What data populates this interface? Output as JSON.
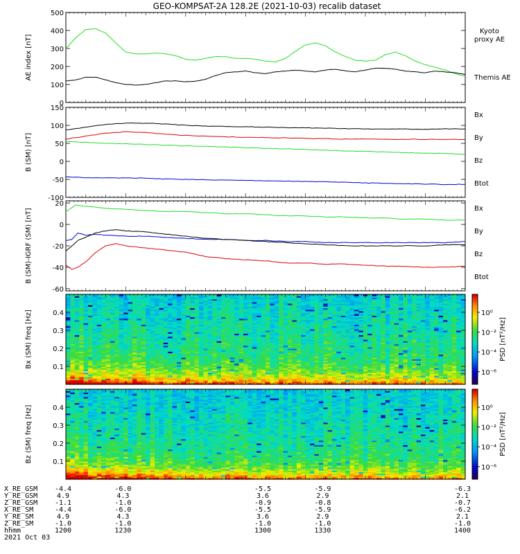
{
  "title": "GEO-KOMPSAT-2A 128.2E (2021-10-03) recalib dataset",
  "colors": {
    "black": "#000000",
    "green": "#22dd22",
    "red": "#dd0000",
    "blue": "#0000cc"
  },
  "chart_data": [
    {
      "type": "line",
      "id": "ae",
      "ylabel": "AE index [nT]",
      "ylim": [
        0,
        500
      ],
      "yticks": [
        0,
        100,
        200,
        300,
        400,
        500
      ],
      "xlim": [
        1200,
        1400
      ],
      "series": [
        {
          "name": "Kyoto proxy AE",
          "color": "green",
          "x": [
            1200,
            1205,
            1210,
            1215,
            1220,
            1225,
            1230,
            1235,
            1240,
            1245,
            1250,
            1255,
            1260,
            1265,
            1270,
            1275,
            1280,
            1285,
            1290,
            1295,
            1300,
            1305,
            1310,
            1315,
            1320,
            1325,
            1330,
            1335,
            1340,
            1345,
            1350,
            1355,
            1360,
            1365,
            1370,
            1375,
            1380,
            1385,
            1390,
            1395,
            1400
          ],
          "y": [
            300,
            360,
            405,
            410,
            385,
            330,
            280,
            270,
            270,
            275,
            270,
            260,
            240,
            235,
            245,
            255,
            255,
            245,
            245,
            240,
            230,
            225,
            245,
            285,
            320,
            330,
            315,
            280,
            255,
            235,
            230,
            235,
            265,
            280,
            260,
            230,
            210,
            195,
            180,
            160,
            145
          ]
        },
        {
          "name": "Themis AE",
          "color": "black",
          "x": [
            1200,
            1205,
            1210,
            1215,
            1220,
            1225,
            1230,
            1235,
            1240,
            1245,
            1250,
            1255,
            1260,
            1265,
            1270,
            1275,
            1280,
            1285,
            1290,
            1295,
            1300,
            1305,
            1310,
            1315,
            1320,
            1325,
            1330,
            1335,
            1340,
            1345,
            1350,
            1355,
            1360,
            1365,
            1370,
            1375,
            1380,
            1385,
            1390,
            1395,
            1400
          ],
          "y": [
            120,
            125,
            140,
            140,
            125,
            110,
            100,
            97,
            100,
            110,
            120,
            120,
            115,
            118,
            130,
            150,
            165,
            170,
            175,
            165,
            160,
            170,
            175,
            180,
            175,
            170,
            180,
            185,
            175,
            170,
            180,
            190,
            190,
            185,
            175,
            170,
            165,
            175,
            170,
            165,
            155
          ]
        }
      ]
    },
    {
      "type": "line",
      "id": "bsm",
      "ylabel": "B (SM) [nT]",
      "ylim": [
        -100,
        150
      ],
      "yticks": [
        -100,
        -50,
        0,
        50,
        100,
        150
      ],
      "xlim": [
        1200,
        1400
      ],
      "series": [
        {
          "name": "Bx",
          "color": "blue",
          "x": [
            1200,
            1210,
            1220,
            1230,
            1240,
            1250,
            1260,
            1270,
            1280,
            1290,
            1300,
            1310,
            1320,
            1330,
            1340,
            1350,
            1360,
            1370,
            1380,
            1390,
            1400
          ],
          "y": [
            -43,
            -45,
            -46,
            -46,
            -47,
            -49,
            -50,
            -51,
            -52,
            -53,
            -54,
            -55,
            -56,
            -57,
            -58,
            -60,
            -61,
            -62,
            -63,
            -64,
            -64
          ]
        },
        {
          "name": "By",
          "color": "green",
          "x": [
            1200,
            1210,
            1220,
            1230,
            1240,
            1250,
            1260,
            1270,
            1280,
            1290,
            1300,
            1310,
            1320,
            1330,
            1340,
            1350,
            1360,
            1370,
            1380,
            1390,
            1400
          ],
          "y": [
            55,
            53,
            50,
            49,
            47,
            45,
            43,
            42,
            40,
            38,
            36,
            35,
            33,
            31,
            29,
            28,
            26,
            24,
            23,
            22,
            20
          ]
        },
        {
          "name": "Bz",
          "color": "red",
          "x": [
            1200,
            1210,
            1220,
            1230,
            1240,
            1250,
            1260,
            1270,
            1280,
            1290,
            1300,
            1310,
            1320,
            1330,
            1340,
            1350,
            1360,
            1370,
            1380,
            1390,
            1400
          ],
          "y": [
            62,
            70,
            78,
            82,
            80,
            75,
            72,
            70,
            68,
            67,
            66,
            65,
            64,
            63,
            62,
            62,
            61,
            61,
            61,
            61,
            61
          ]
        },
        {
          "name": "Btot",
          "color": "black",
          "x": [
            1200,
            1210,
            1220,
            1230,
            1240,
            1250,
            1260,
            1270,
            1280,
            1290,
            1300,
            1310,
            1320,
            1330,
            1340,
            1350,
            1360,
            1370,
            1380,
            1390,
            1400
          ],
          "y": [
            87,
            95,
            103,
            106,
            106,
            104,
            100,
            98,
            97,
            96,
            95,
            94,
            93,
            92,
            91,
            90,
            90,
            90,
            89,
            90,
            90
          ]
        }
      ]
    },
    {
      "type": "line",
      "id": "bigrf",
      "ylabel": "B (SM)-IGRF (SM) [nT]",
      "ylim": [
        -62,
        22
      ],
      "yticks": [
        -60,
        -40,
        -20,
        0,
        20
      ],
      "xlim": [
        1200,
        1400
      ],
      "series": [
        {
          "name": "Bx",
          "color": "blue",
          "x": [
            1200,
            1203,
            1206,
            1210,
            1215,
            1220,
            1230,
            1240,
            1250,
            1260,
            1270,
            1280,
            1290,
            1300,
            1310,
            1320,
            1330,
            1340,
            1350,
            1360,
            1370,
            1380,
            1390,
            1400
          ],
          "y": [
            -15,
            -14,
            -8,
            -10,
            -9,
            -10,
            -11,
            -11,
            -12,
            -13,
            -14,
            -14,
            -15,
            -15,
            -16,
            -16,
            -17,
            -17,
            -17,
            -17,
            -17,
            -17,
            -17,
            -16
          ]
        },
        {
          "name": "By",
          "color": "green",
          "x": [
            1200,
            1205,
            1210,
            1215,
            1220,
            1230,
            1240,
            1250,
            1260,
            1270,
            1280,
            1290,
            1300,
            1310,
            1320,
            1330,
            1340,
            1350,
            1360,
            1370,
            1380,
            1390,
            1400
          ],
          "y": [
            12,
            18,
            17,
            16,
            15,
            14,
            13,
            12,
            12,
            11,
            10,
            10,
            9,
            8,
            8,
            7,
            7,
            6,
            6,
            5,
            5,
            4,
            4
          ]
        },
        {
          "name": "Bz",
          "color": "red",
          "x": [
            1200,
            1203,
            1206,
            1210,
            1215,
            1220,
            1225,
            1230,
            1240,
            1250,
            1260,
            1270,
            1280,
            1290,
            1300,
            1310,
            1320,
            1330,
            1340,
            1350,
            1360,
            1370,
            1380,
            1390,
            1400
          ],
          "y": [
            -38,
            -42,
            -40,
            -35,
            -26,
            -20,
            -18,
            -20,
            -22,
            -24,
            -26,
            -30,
            -32,
            -33,
            -34,
            -36,
            -36,
            -37,
            -37,
            -38,
            -39,
            -39,
            -40,
            -40,
            -39
          ]
        },
        {
          "name": "Btot",
          "color": "black",
          "x": [
            1200,
            1203,
            1206,
            1210,
            1215,
            1220,
            1225,
            1230,
            1240,
            1250,
            1260,
            1270,
            1280,
            1290,
            1300,
            1310,
            1320,
            1330,
            1340,
            1350,
            1360,
            1370,
            1380,
            1390,
            1400
          ],
          "y": [
            -25,
            -20,
            -15,
            -12,
            -8,
            -6,
            -5,
            -6,
            -7,
            -9,
            -11,
            -13,
            -14,
            -15,
            -16,
            -17,
            -18,
            -19,
            -20,
            -20,
            -20,
            -20,
            -20,
            -19,
            -19
          ]
        }
      ]
    },
    {
      "type": "heatmap",
      "id": "bx_spec",
      "ylabel": "Bx (SM) freq [Hz]",
      "ylim": [
        0,
        0.5
      ],
      "yticks": [
        0.1,
        0.2,
        0.3,
        0.4
      ],
      "xlim": [
        1200,
        1400
      ],
      "colorbar": {
        "label": "PSD [nT²/Hz]",
        "ticks": [
          "10⁰",
          "10⁻²",
          "10⁻⁴",
          "10⁻⁶"
        ]
      }
    },
    {
      "type": "heatmap",
      "id": "bz_spec",
      "ylabel": "Bz (SM) freq [Hz]",
      "ylim": [
        0,
        0.5
      ],
      "yticks": [
        0.1,
        0.2,
        0.3,
        0.4
      ],
      "xlim": [
        1200,
        1400
      ],
      "colorbar": {
        "label": "PSD [nT²/Hz]",
        "ticks": [
          "10⁰",
          "10⁻²",
          "10⁻⁴",
          "10⁻⁶"
        ]
      }
    }
  ],
  "xaxis": {
    "ticks": [
      1200,
      1230,
      1300,
      1330,
      1400
    ],
    "rows": [
      {
        "label": "X_RE_GSM",
        "values": [
          "-4.4",
          "-6.0",
          "-5.5",
          "-5.9",
          "-6.3"
        ]
      },
      {
        "label": "Y_RE_GSM",
        "values": [
          "4.9",
          "4.3",
          "3.6",
          "2.9",
          "2.1"
        ]
      },
      {
        "label": "Z_RE_GSM",
        "values": [
          "-1.1",
          "-1.0",
          "-0.9",
          "-0.8",
          "-0.7"
        ]
      },
      {
        "label": "X_RE_SM",
        "values": [
          "-4.4",
          "-6.0",
          "-5.5",
          "-5.9",
          "-6.2"
        ]
      },
      {
        "label": "Y_RE_SM",
        "values": [
          "4.9",
          "4.3",
          "3.6",
          "2.9",
          "2.1"
        ]
      },
      {
        "label": "Z_RE_SM",
        "values": [
          "-1.0",
          "-1.0",
          "-1.0",
          "-1.0",
          "-1.0"
        ]
      },
      {
        "label": "hhmm",
        "values": [
          "1200",
          "1230",
          "1300",
          "1330",
          "1400"
        ]
      }
    ],
    "date": "2021 Oct 03"
  }
}
